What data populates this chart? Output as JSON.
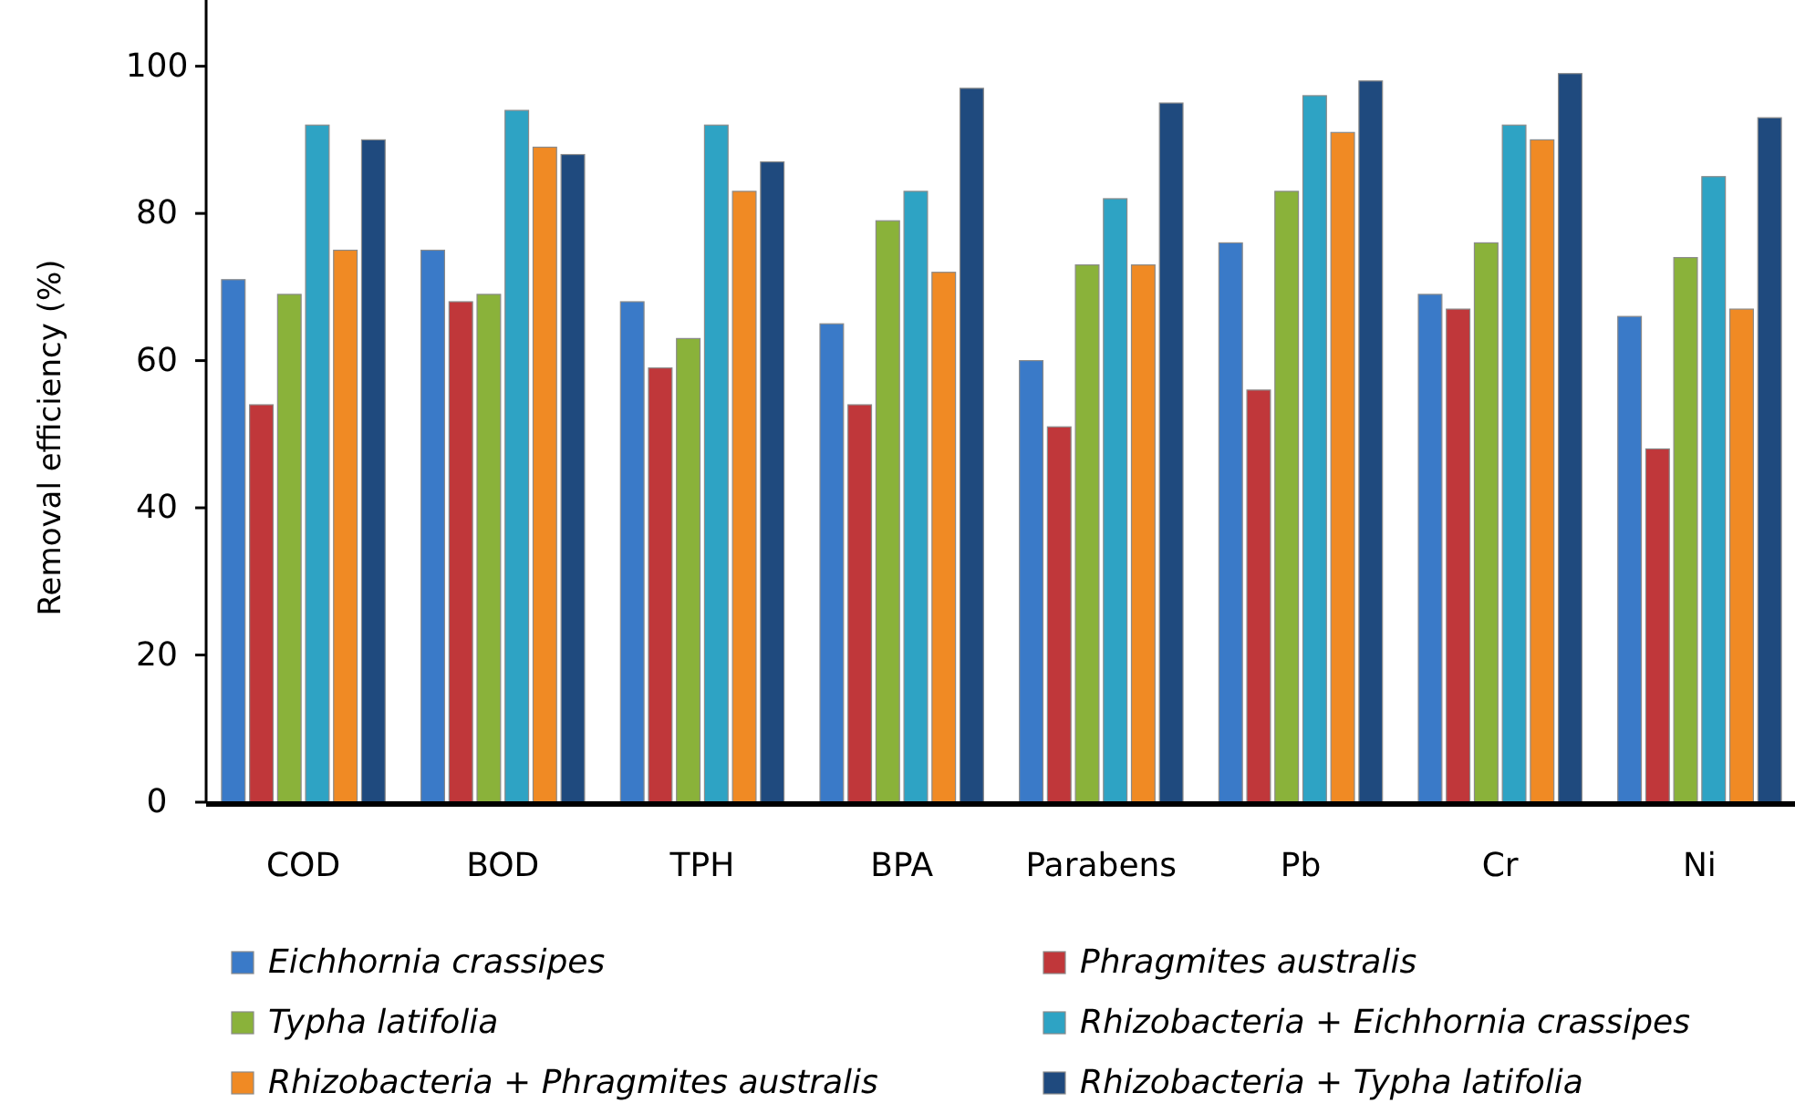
{
  "chart_data": {
    "type": "bar",
    "ylabel": "Removal efficiency (%)",
    "categories": [
      "COD",
      "BOD",
      "TPH",
      "BPA",
      "Parabens",
      "Pb",
      "Cr",
      "Ni"
    ],
    "series": [
      {
        "name": "Eichhornia crassipes",
        "color": "#3a7ac8",
        "values": [
          71,
          75,
          68,
          65,
          60,
          76,
          69,
          66
        ]
      },
      {
        "name": "Phragmites australis",
        "color": "#c0373a",
        "values": [
          54,
          68,
          59,
          54,
          51,
          56,
          67,
          48
        ]
      },
      {
        "name": "Typha latifolia",
        "color": "#8ab23a",
        "values": [
          69,
          69,
          63,
          79,
          73,
          83,
          76,
          74
        ]
      },
      {
        "name": "Rhizobacteria + Eichhornia crassipes",
        "color": "#2ea3c4",
        "values": [
          92,
          94,
          92,
          83,
          82,
          96,
          92,
          85
        ]
      },
      {
        "name": "Rhizobacteria + Phragmites australis",
        "color": "#f08a24",
        "values": [
          75,
          89,
          83,
          72,
          73,
          91,
          90,
          67
        ]
      },
      {
        "name": "Rhizobacteria + Typha latifolia",
        "color": "#1f4a7e",
        "values": [
          90,
          88,
          87,
          97,
          95,
          98,
          99,
          93
        ]
      }
    ],
    "ylim": [
      0,
      109
    ],
    "yticks": [
      0,
      20,
      40,
      60,
      80,
      100
    ],
    "grid": false,
    "legend": "bottom"
  }
}
